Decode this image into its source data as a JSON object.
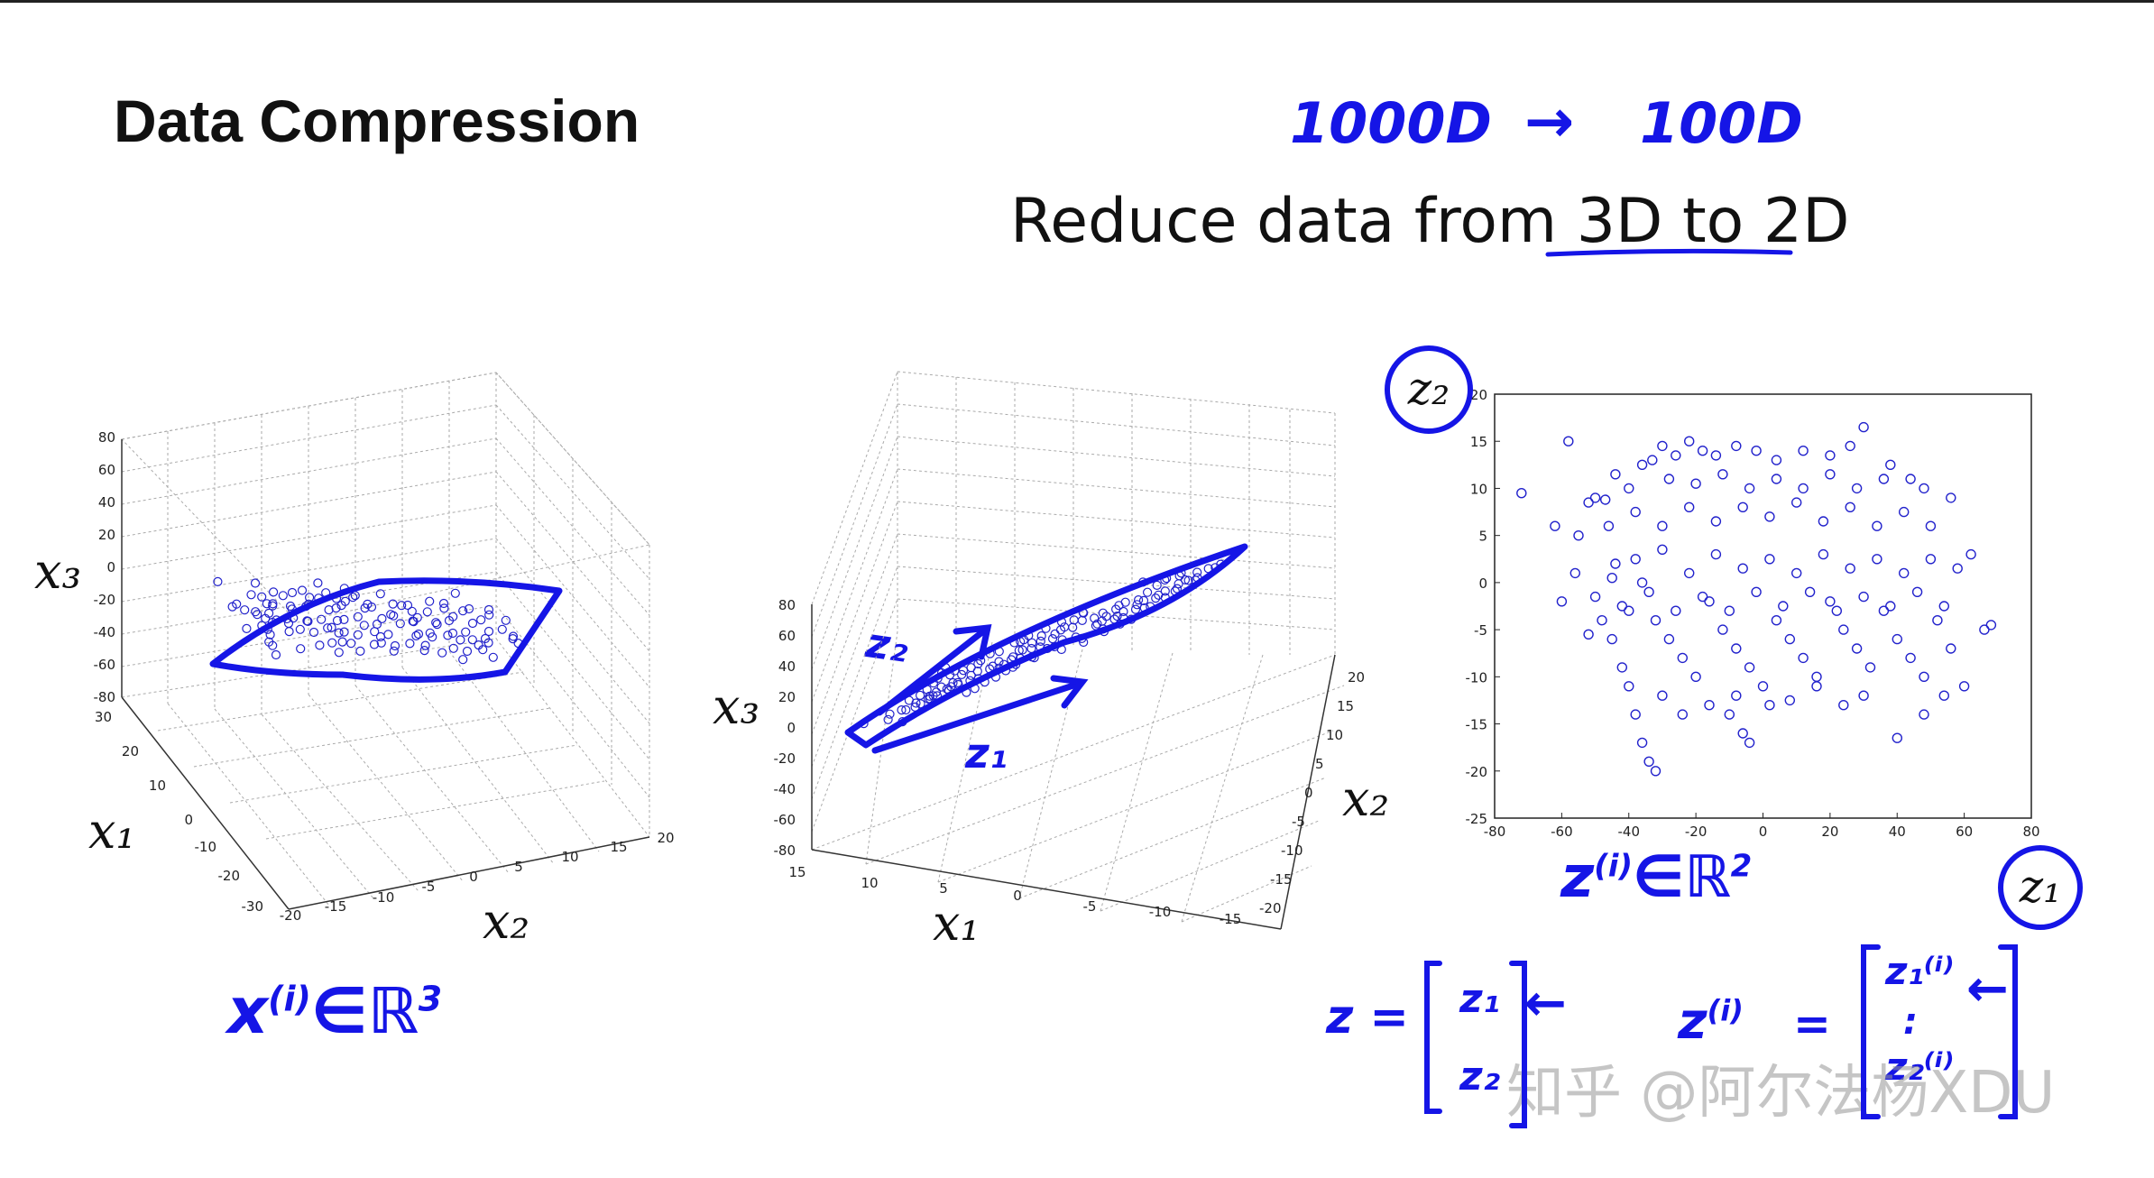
{
  "title": "Data Compression",
  "subtitle": {
    "prefix": "Reduce data from ",
    "highlight": "3D to 2D"
  },
  "annotations": {
    "dim_from": "1000D",
    "arrow": "→",
    "dim_to": "100D",
    "x_in_r3_base": "x",
    "x_in_r3_sup": "(i)",
    "x_in_r3_set": "∈ℝ",
    "x_in_r3_exp": "3",
    "z_in_r2_base": "z",
    "z_in_r2_sup": "(i)",
    "z_in_r2_set": "∈ℝ",
    "z_in_r2_exp": "2",
    "z_label_1": "z₁",
    "z_label_2": "z₂",
    "vector_z_lhs": "z =",
    "vector_z_top": "z₁",
    "vector_z_bottom": "z₂",
    "vector_zi_lhs_base": "z",
    "vector_zi_lhs_sup": "(i)",
    "vector_zi_eq": "=",
    "vector_zi_top": "z₁⁽ⁱ⁾",
    "vector_zi_mid": ":",
    "vector_zi_bottom": "z₂⁽ⁱ⁾",
    "left_arrow": "←"
  },
  "plot3d_left": {
    "zlabel": "x₃",
    "xlabel": "x₁",
    "ylabel": "x₂",
    "z_ticks": [
      "80",
      "60",
      "40",
      "20",
      "0",
      "-20",
      "-40",
      "-60",
      "-80"
    ],
    "x1_ticks": [
      "30",
      "20",
      "10",
      "0",
      "-10",
      "-20",
      "-30"
    ],
    "x2_ticks": [
      "-20",
      "-15",
      "-10",
      "-5",
      "0",
      "5",
      "10",
      "15",
      "20"
    ]
  },
  "plot3d_middle": {
    "zlabel": "x₃",
    "xlabel": "x₁",
    "ylabel": "x₂",
    "z_ticks": [
      "80",
      "60",
      "40",
      "20",
      "0",
      "-20",
      "-40",
      "-60",
      "-80"
    ],
    "x1_ticks": [
      "15",
      "10",
      "5",
      "0",
      "-5",
      "-10",
      "-15"
    ],
    "x2_ticks": [
      "20",
      "15",
      "10",
      "5",
      "0",
      "-5",
      "-10",
      "-15",
      "-20"
    ]
  },
  "chart_data": {
    "type": "scatter",
    "title": "",
    "xlabel": "z₁",
    "ylabel": "z₂",
    "xlim": [
      -80,
      80
    ],
    "ylim": [
      -25,
      20
    ],
    "x_ticks": [
      "-80",
      "-60",
      "-40",
      "-20",
      "0",
      "20",
      "40",
      "60",
      "80"
    ],
    "y_ticks": [
      "20",
      "15",
      "10",
      "5",
      "0",
      "-5",
      "-10",
      "-15",
      "-20",
      "-25"
    ],
    "marker_color": "#2222cc",
    "series": [
      {
        "name": "z",
        "points": [
          [
            -72,
            9.5
          ],
          [
            -58,
            15
          ],
          [
            -62,
            6
          ],
          [
            -55,
            5
          ],
          [
            -52,
            8.5
          ],
          [
            -50,
            9
          ],
          [
            -47,
            8.8
          ],
          [
            -44,
            11.5
          ],
          [
            -40,
            10
          ],
          [
            -36,
            12.5
          ],
          [
            -33,
            13
          ],
          [
            -30,
            14.5
          ],
          [
            -26,
            13.5
          ],
          [
            -22,
            15
          ],
          [
            -18,
            14
          ],
          [
            -14,
            13.5
          ],
          [
            -8,
            14.5
          ],
          [
            -2,
            14
          ],
          [
            4,
            13
          ],
          [
            12,
            14
          ],
          [
            20,
            13.5
          ],
          [
            26,
            14.5
          ],
          [
            30,
            16.5
          ],
          [
            38,
            12.5
          ],
          [
            44,
            11
          ],
          [
            48,
            10
          ],
          [
            56,
            9
          ],
          [
            62,
            3
          ],
          [
            -60,
            -2
          ],
          [
            -56,
            1
          ],
          [
            -52,
            -5.5
          ],
          [
            -48,
            -4
          ],
          [
            -45,
            -6
          ],
          [
            -42,
            -9
          ],
          [
            -40,
            -11
          ],
          [
            -38,
            -14
          ],
          [
            -36,
            -17
          ],
          [
            -34,
            -19
          ],
          [
            -32,
            -20
          ],
          [
            -44,
            2
          ],
          [
            -40,
            -3
          ],
          [
            -36,
            0
          ],
          [
            -32,
            -4
          ],
          [
            -28,
            -6
          ],
          [
            -24,
            -8
          ],
          [
            -20,
            -10
          ],
          [
            -16,
            -2
          ],
          [
            -12,
            -5
          ],
          [
            -8,
            -7
          ],
          [
            -4,
            -9
          ],
          [
            0,
            -11
          ],
          [
            4,
            -4
          ],
          [
            8,
            -6
          ],
          [
            12,
            -8
          ],
          [
            16,
            -10
          ],
          [
            20,
            -2
          ],
          [
            24,
            -5
          ],
          [
            28,
            -7
          ],
          [
            32,
            -9
          ],
          [
            36,
            -3
          ],
          [
            40,
            -6
          ],
          [
            44,
            -8
          ],
          [
            48,
            -10
          ],
          [
            52,
            -4
          ],
          [
            56,
            -7
          ],
          [
            60,
            -11
          ],
          [
            66,
            -5
          ],
          [
            68,
            -4.5
          ],
          [
            -6,
            -16
          ],
          [
            -4,
            -17
          ],
          [
            -10,
            -14
          ],
          [
            2,
            -13
          ],
          [
            40,
            -16.5
          ],
          [
            -45,
            0.5
          ],
          [
            -38,
            2.5
          ],
          [
            -30,
            3.5
          ],
          [
            -22,
            1
          ],
          [
            -14,
            3
          ],
          [
            -6,
            1.5
          ],
          [
            2,
            2.5
          ],
          [
            10,
            1
          ],
          [
            18,
            3
          ],
          [
            26,
            1.5
          ],
          [
            34,
            2.5
          ],
          [
            42,
            1
          ],
          [
            50,
            2.5
          ],
          [
            58,
            1.5
          ],
          [
            -46,
            6
          ],
          [
            -38,
            7.5
          ],
          [
            -30,
            6
          ],
          [
            -22,
            8
          ],
          [
            -14,
            6.5
          ],
          [
            -6,
            8
          ],
          [
            2,
            7
          ],
          [
            10,
            8.5
          ],
          [
            18,
            6.5
          ],
          [
            26,
            8
          ],
          [
            34,
            6
          ],
          [
            42,
            7.5
          ],
          [
            50,
            6
          ],
          [
            -50,
            -1.5
          ],
          [
            -42,
            -2.5
          ],
          [
            -34,
            -1
          ],
          [
            -26,
            -3
          ],
          [
            -18,
            -1.5
          ],
          [
            -10,
            -3
          ],
          [
            -2,
            -1
          ],
          [
            6,
            -2.5
          ],
          [
            14,
            -1
          ],
          [
            22,
            -3
          ],
          [
            30,
            -1.5
          ],
          [
            38,
            -2.5
          ],
          [
            46,
            -1
          ],
          [
            54,
            -2.5
          ],
          [
            -28,
            11
          ],
          [
            -20,
            10.5
          ],
          [
            -12,
            11.5
          ],
          [
            -4,
            10
          ],
          [
            4,
            11
          ],
          [
            12,
            10
          ],
          [
            20,
            11.5
          ],
          [
            28,
            10
          ],
          [
            36,
            11
          ],
          [
            -16,
            -13
          ],
          [
            -8,
            -12
          ],
          [
            8,
            -12.5
          ],
          [
            16,
            -11
          ],
          [
            24,
            -13
          ],
          [
            30,
            -12
          ],
          [
            -24,
            -14
          ],
          [
            -30,
            -12
          ],
          [
            48,
            -14
          ],
          [
            54,
            -12
          ]
        ]
      }
    ]
  }
}
